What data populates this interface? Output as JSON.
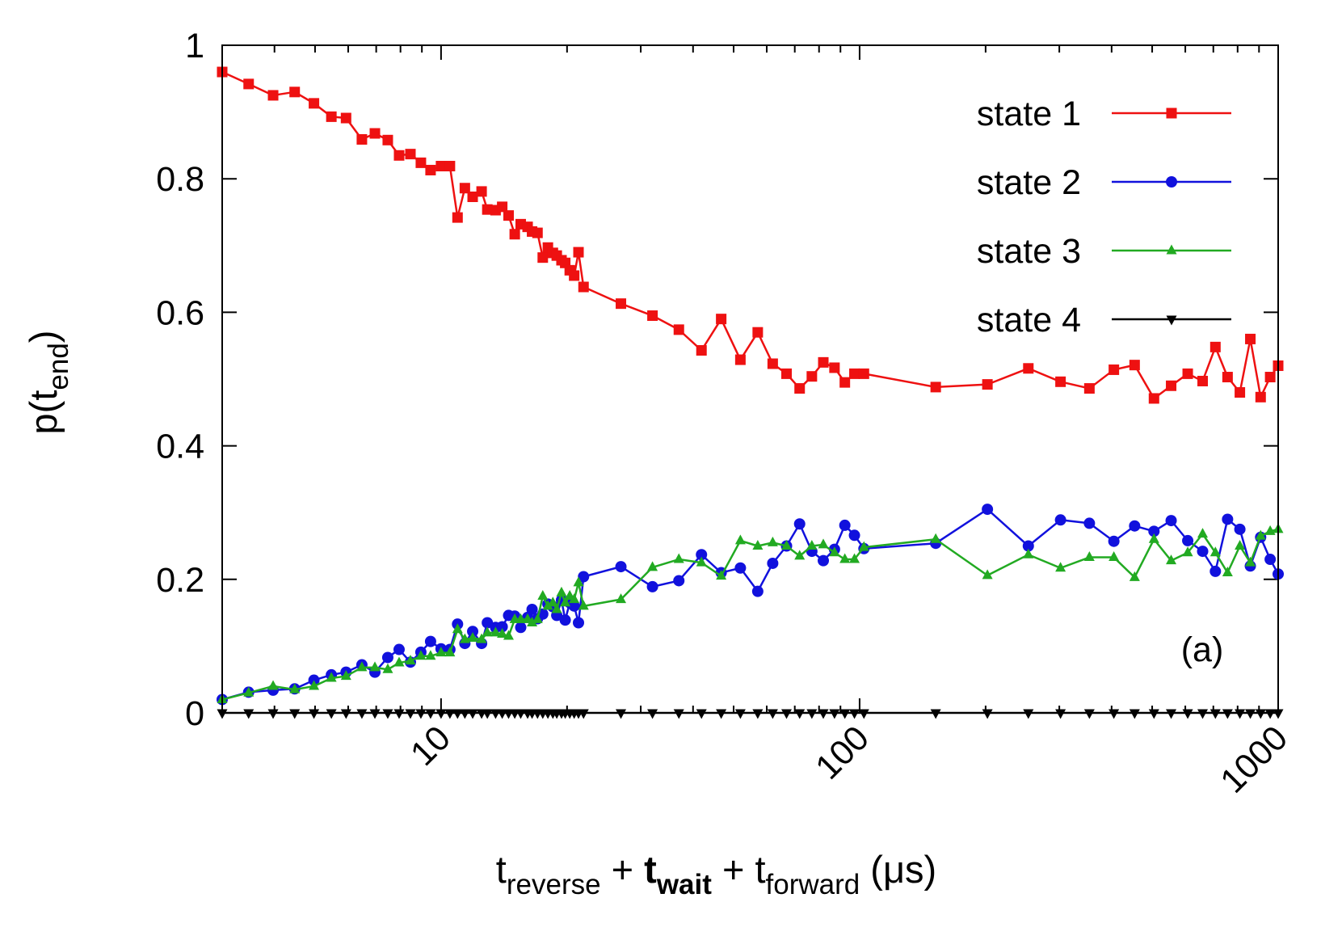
{
  "chart_data": {
    "type": "line",
    "xscale": "log",
    "xlim": [
      3,
      1000
    ],
    "ylim": [
      0,
      1
    ],
    "xticks": [
      10,
      100,
      1000
    ],
    "xminorticks": [
      4,
      5,
      6,
      7,
      8,
      9,
      20,
      30,
      40,
      50,
      60,
      70,
      80,
      90,
      200,
      300,
      400,
      500,
      600,
      700,
      800,
      900
    ],
    "yticks": [
      0,
      0.2,
      0.4,
      0.6,
      0.8,
      1
    ],
    "grid": false,
    "legend": "top-right",
    "xlabel_parts": [
      "t",
      "reverse",
      " + ",
      "t",
      "wait",
      " + ",
      "t",
      "forward",
      " (μs)"
    ],
    "ylabel_parts": [
      "p(t",
      "end",
      ")"
    ],
    "annotation": "(a)",
    "x": [
      3,
      3.47,
      3.97,
      4.47,
      4.97,
      5.47,
      5.93,
      6.47,
      6.95,
      7.46,
      7.94,
      8.45,
      8.95,
      9.44,
      10,
      10.5,
      10.95,
      11.4,
      11.9,
      12.5,
      12.9,
      13.5,
      14,
      14.5,
      15,
      15.5,
      16.1,
      16.5,
      17,
      17.5,
      18,
      18.5,
      18.9,
      19.4,
      19.8,
      20.3,
      20.8,
      21.3,
      21.9,
      26.9,
      32,
      37,
      41.9,
      46.7,
      51.9,
      57.1,
      62,
      66.9,
      71.9,
      76.9,
      81.9,
      87.1,
      92.2,
      97.2,
      102.4,
      152,
      202,
      253,
      302,
      354,
      405,
      454,
      505,
      555,
      608,
      660,
      708,
      757,
      810,
      858,
      908,
      957,
      1000
    ],
    "series": [
      {
        "name": "state 1",
        "color": "#ee1111",
        "marker": "square",
        "values": [
          0.96,
          0.942,
          0.925,
          0.93,
          0.913,
          0.893,
          0.891,
          0.859,
          0.868,
          0.858,
          0.835,
          0.837,
          0.824,
          0.813,
          0.819,
          0.819,
          0.742,
          0.786,
          0.773,
          0.781,
          0.754,
          0.753,
          0.758,
          0.745,
          0.717,
          0.732,
          0.728,
          0.721,
          0.719,
          0.682,
          0.697,
          0.689,
          0.685,
          0.678,
          0.674,
          0.663,
          0.655,
          0.69,
          0.638,
          0.613,
          0.595,
          0.574,
          0.543,
          0.59,
          0.529,
          0.57,
          0.523,
          0.508,
          0.486,
          0.504,
          0.525,
          0.517,
          0.495,
          0.508,
          0.508,
          0.488,
          0.492,
          0.516,
          0.496,
          0.486,
          0.514,
          0.521,
          0.471,
          0.49,
          0.508,
          0.497,
          0.548,
          0.503,
          0.48,
          0.56,
          0.473,
          0.503,
          0.52
        ]
      },
      {
        "name": "state 2",
        "color": "#1111dd",
        "marker": "circle",
        "values": [
          0.02,
          0.031,
          0.034,
          0.036,
          0.049,
          0.057,
          0.061,
          0.072,
          0.061,
          0.083,
          0.095,
          0.076,
          0.091,
          0.107,
          0.096,
          0.095,
          0.133,
          0.104,
          0.122,
          0.104,
          0.135,
          0.128,
          0.129,
          0.146,
          0.145,
          0.128,
          0.143,
          0.155,
          0.141,
          0.148,
          0.163,
          0.159,
          0.146,
          0.169,
          0.139,
          0.165,
          0.16,
          0.135,
          0.204,
          0.219,
          0.189,
          0.198,
          0.237,
          0.21,
          0.217,
          0.182,
          0.224,
          0.25,
          0.283,
          0.242,
          0.228,
          0.245,
          0.281,
          0.266,
          0.246,
          0.254,
          0.305,
          0.25,
          0.289,
          0.284,
          0.257,
          0.28,
          0.272,
          0.288,
          0.258,
          0.242,
          0.212,
          0.29,
          0.275,
          0.22,
          0.263,
          0.23,
          0.208
        ]
      },
      {
        "name": "state 3",
        "color": "#22aa22",
        "marker": "triangle-up",
        "values": [
          0.02,
          0.03,
          0.04,
          0.035,
          0.04,
          0.052,
          0.055,
          0.068,
          0.068,
          0.065,
          0.075,
          0.078,
          0.085,
          0.085,
          0.09,
          0.09,
          0.125,
          0.11,
          0.112,
          0.11,
          0.12,
          0.12,
          0.118,
          0.115,
          0.14,
          0.14,
          0.14,
          0.135,
          0.14,
          0.175,
          0.16,
          0.165,
          0.155,
          0.18,
          0.165,
          0.175,
          0.17,
          0.195,
          0.16,
          0.17,
          0.218,
          0.23,
          0.225,
          0.205,
          0.258,
          0.25,
          0.255,
          0.25,
          0.235,
          0.25,
          0.252,
          0.24,
          0.23,
          0.23,
          0.248,
          0.26,
          0.206,
          0.237,
          0.217,
          0.233,
          0.233,
          0.203,
          0.26,
          0.228,
          0.24,
          0.268,
          0.24,
          0.21,
          0.25,
          0.225,
          0.265,
          0.272,
          0.275
        ]
      },
      {
        "name": "state 4",
        "color": "#000000",
        "marker": "triangle-down",
        "values": [
          0,
          0,
          0,
          0,
          0,
          0,
          0,
          0,
          0,
          0,
          0,
          0,
          0,
          0,
          0,
          0,
          0,
          0,
          0,
          0,
          0,
          0,
          0,
          0,
          0,
          0,
          0,
          0,
          0,
          0,
          0,
          0,
          0,
          0,
          0,
          0,
          0,
          0,
          0,
          0,
          0,
          0,
          0,
          0,
          0,
          0,
          0,
          0,
          0,
          0,
          0,
          0,
          0,
          0,
          0,
          0,
          0,
          0,
          0,
          0,
          0,
          0,
          0,
          0,
          0,
          0,
          0,
          0,
          0,
          0,
          0,
          0,
          0
        ]
      }
    ]
  }
}
